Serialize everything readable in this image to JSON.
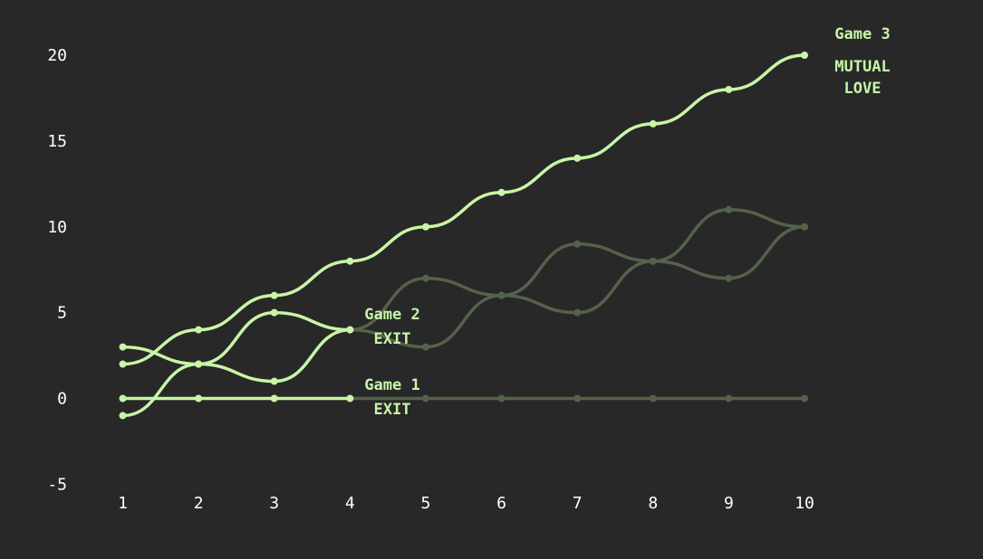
{
  "colors": {
    "background": "#282828",
    "active": "#c8f5a8",
    "faded": "#55624b",
    "text": "#ffffff"
  },
  "chart_data": {
    "type": "line",
    "title": "",
    "xlabel": "",
    "ylabel": "",
    "x": [
      1,
      2,
      3,
      4,
      5,
      6,
      7,
      8,
      9,
      10
    ],
    "xlim": [
      1,
      10
    ],
    "ylim": [
      -5,
      20
    ],
    "x_ticks": [
      "1",
      "2",
      "3",
      "4",
      "5",
      "6",
      "7",
      "8",
      "9",
      "10"
    ],
    "y_ticks": [
      "-5",
      "0",
      "5",
      "10",
      "15",
      "20"
    ],
    "grid": false,
    "series": [
      {
        "values": [
          0,
          0,
          0,
          0,
          0,
          0,
          0,
          0,
          0,
          0
        ],
        "highlight_until": 4,
        "label_title": "Game 1",
        "label_outcome": "EXIT"
      },
      {
        "values": [
          3,
          2,
          1,
          4,
          7,
          6,
          9,
          8,
          11,
          10
        ],
        "highlight_until": 4,
        "label_title": "Game 2",
        "label_outcome": "EXIT"
      },
      {
        "values": [
          -1,
          2,
          5,
          4,
          3,
          6,
          5,
          8,
          7,
          10
        ],
        "highlight_until": 4
      },
      {
        "values": [
          2,
          4,
          6,
          8,
          10,
          12,
          14,
          16,
          18,
          20
        ],
        "highlight_until": 10,
        "label_title": "Game 3",
        "label_outcome_line1": "MUTUAL",
        "label_outcome_line2": "LOVE"
      }
    ]
  }
}
